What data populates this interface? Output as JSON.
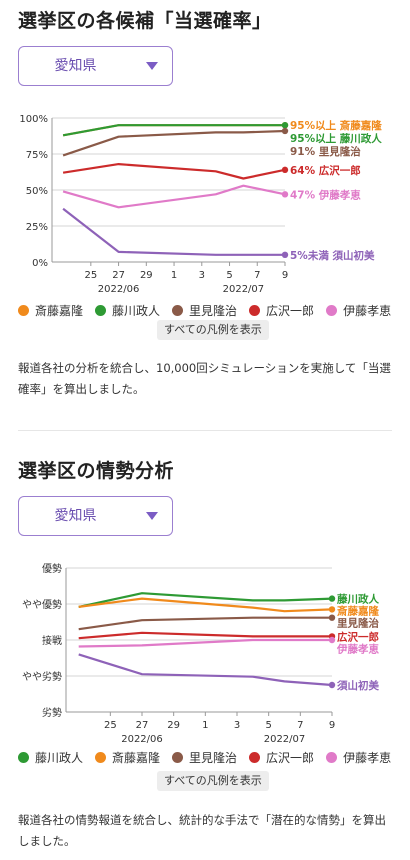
{
  "section1": {
    "title": "選挙区の各候補「当選確率」",
    "prefecture": "愛知県",
    "legend": [
      {
        "name": "斎藤嘉隆",
        "color": "#f08a1c"
      },
      {
        "name": "藤川政人",
        "color": "#2e9a34"
      },
      {
        "name": "里見隆治",
        "color": "#8a5a48"
      },
      {
        "name": "広沢一郎",
        "color": "#cc2b2b"
      },
      {
        "name": "伊藤孝恵",
        "color": "#e07ac8"
      }
    ],
    "show_all_label": "すべての凡例を表示",
    "note": "報道各社の分析を統合し、10,000回シミュレーションを実施して「当選確率」を算出しました。"
  },
  "section2": {
    "title": "選挙区の情勢分析",
    "prefecture": "愛知県",
    "legend": [
      {
        "name": "藤川政人",
        "color": "#2e9a34"
      },
      {
        "name": "斎藤嘉隆",
        "color": "#f08a1c"
      },
      {
        "name": "里見隆治",
        "color": "#8a5a48"
      },
      {
        "name": "広沢一郎",
        "color": "#cc2b2b"
      },
      {
        "name": "伊藤孝恵",
        "color": "#e07ac8"
      }
    ],
    "show_all_label": "すべての凡例を表示",
    "note": "報道各社の情勢報道を統合し、統計的な手法で「潜在的な情勢」を算出しました。"
  },
  "chart_data": [
    {
      "type": "line",
      "x": [
        "2022-06-23",
        "2022-06-27",
        "2022-07-04",
        "2022-07-06",
        "2022-07-09"
      ],
      "x_ticks": [
        "25",
        "27",
        "29",
        "1",
        "3",
        "5",
        "7",
        "9"
      ],
      "x_month_labels": [
        "2022/06",
        "2022/07"
      ],
      "yticks": [
        "0%",
        "25%",
        "50%",
        "75%",
        "100%"
      ],
      "ylim": [
        0,
        100
      ],
      "series": [
        {
          "name": "斎藤嘉隆",
          "color": "#f08a1c",
          "values": [
            88,
            95,
            95,
            95,
            95
          ],
          "end_label": "95%以上 斎藤嘉隆"
        },
        {
          "name": "藤川政人",
          "color": "#2e9a34",
          "values": [
            88,
            95,
            95,
            95,
            95
          ],
          "end_label": "95%以上 藤川政人"
        },
        {
          "name": "里見隆治",
          "color": "#8a5a48",
          "values": [
            74,
            87,
            90,
            90,
            91
          ],
          "end_label": "91% 里見隆治"
        },
        {
          "name": "広沢一郎",
          "color": "#cc2b2b",
          "values": [
            62,
            68,
            63,
            58,
            64
          ],
          "end_label": "64% 広沢一郎"
        },
        {
          "name": "伊藤孝恵",
          "color": "#e07ac8",
          "values": [
            49,
            38,
            47,
            53,
            47
          ],
          "end_label": "47% 伊藤孝恵"
        },
        {
          "name": "須山初美",
          "color": "#8e62b8",
          "values": [
            37,
            7,
            5,
            5,
            5
          ],
          "end_label": "5%未満 須山初美"
        }
      ]
    },
    {
      "type": "line",
      "x": [
        "2022-06-23",
        "2022-06-27",
        "2022-07-04",
        "2022-07-06",
        "2022-07-09"
      ],
      "x_ticks": [
        "25",
        "27",
        "29",
        "1",
        "3",
        "5",
        "7",
        "9"
      ],
      "x_month_labels": [
        "2022/06",
        "2022/07"
      ],
      "yticks": [
        "劣勢",
        "やや劣勢",
        "接戦",
        "やや優勢",
        "優勢"
      ],
      "ylim": [
        0,
        4
      ],
      "series": [
        {
          "name": "藤川政人",
          "color": "#2e9a34",
          "values": [
            2.92,
            3.3,
            3.1,
            3.1,
            3.15
          ],
          "end_label": "藤川政人"
        },
        {
          "name": "斎藤嘉隆",
          "color": "#f08a1c",
          "values": [
            2.92,
            3.15,
            2.9,
            2.8,
            2.85
          ],
          "end_label": "斎藤嘉隆"
        },
        {
          "name": "里見隆治",
          "color": "#8a5a48",
          "values": [
            2.3,
            2.55,
            2.62,
            2.62,
            2.62
          ],
          "end_label": "里見隆治"
        },
        {
          "name": "広沢一郎",
          "color": "#cc2b2b",
          "values": [
            2.05,
            2.2,
            2.1,
            2.1,
            2.1
          ],
          "end_label": "広沢一郎"
        },
        {
          "name": "伊藤孝恵",
          "color": "#e07ac8",
          "values": [
            1.82,
            1.85,
            2.0,
            2.0,
            2.0
          ],
          "end_label": "伊藤孝恵"
        },
        {
          "name": "須山初美",
          "color": "#8e62b8",
          "values": [
            1.6,
            1.05,
            0.98,
            0.85,
            0.75
          ],
          "end_label": "須山初美"
        }
      ]
    }
  ]
}
